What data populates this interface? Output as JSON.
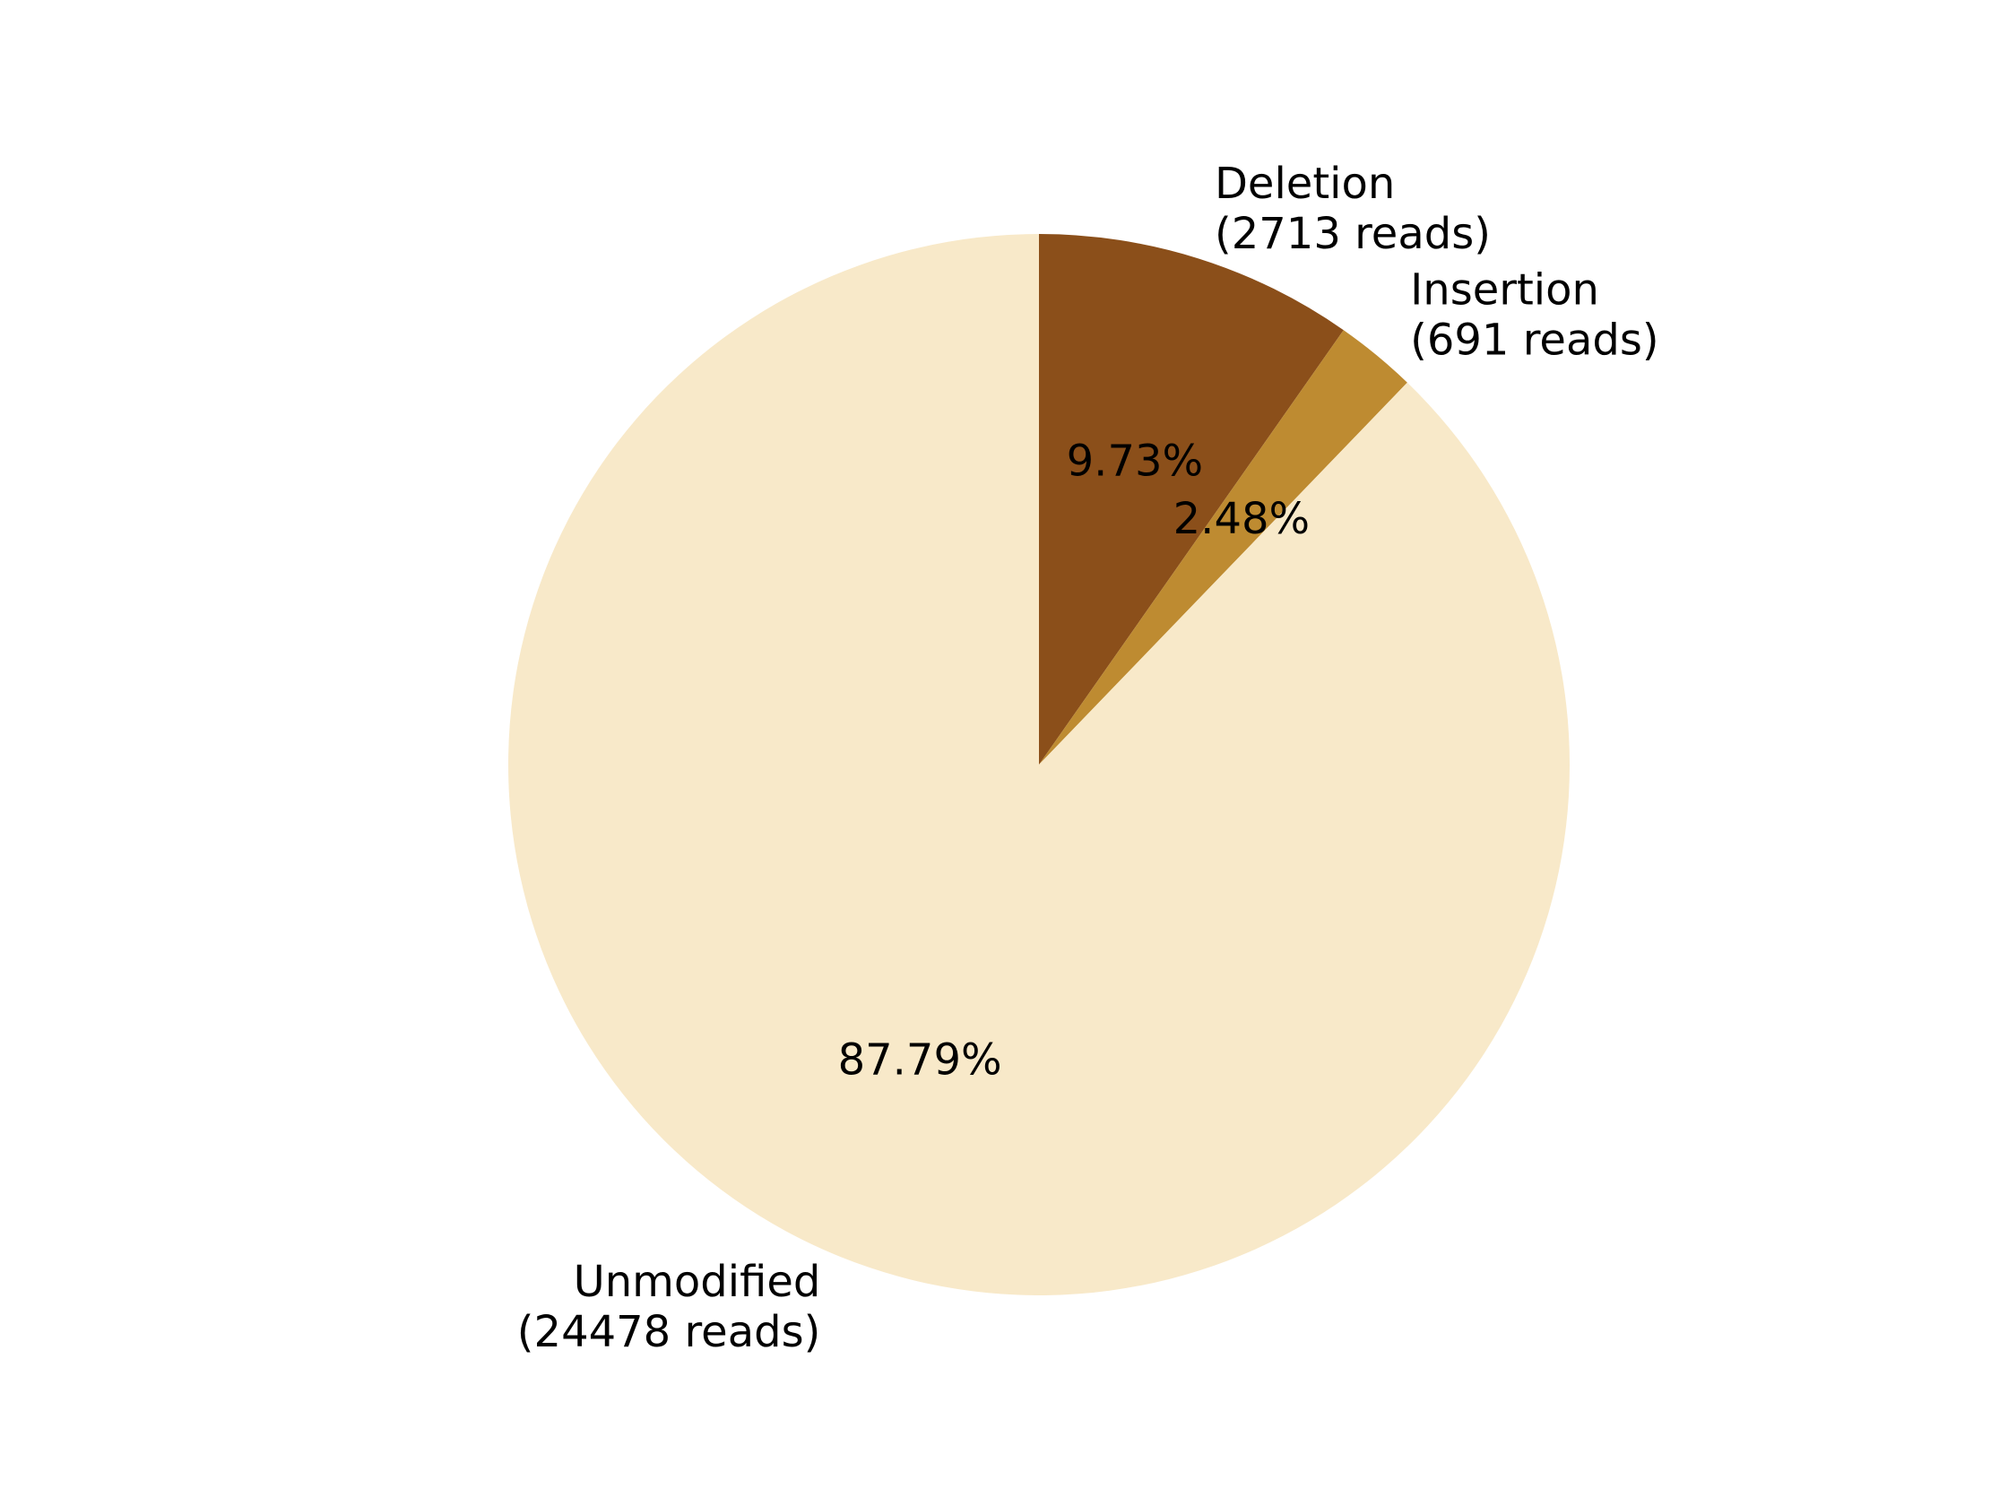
{
  "chart_data": {
    "type": "pie",
    "start_angle_deg": 90,
    "direction": "clockwise",
    "slices": [
      {
        "name": "Deletion",
        "value": 2713,
        "count_label": "(2713 reads)",
        "percent_label": "9.73%",
        "color": "#8B4F1A"
      },
      {
        "name": "Insertion",
        "value": 691,
        "count_label": "(691 reads)",
        "percent_label": "2.48%",
        "color": "#BE8B31"
      },
      {
        "name": "Unmodified",
        "value": 24478,
        "count_label": "(24478 reads)",
        "percent_label": "87.79%",
        "color": "#F8E9C9"
      }
    ]
  }
}
